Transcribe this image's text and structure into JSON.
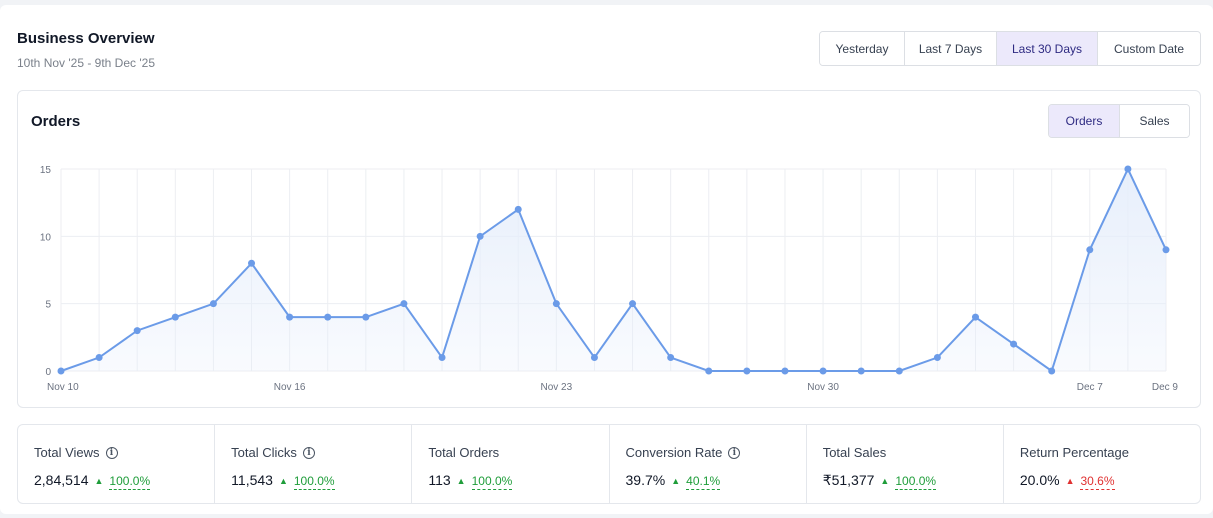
{
  "header": {
    "title": "Business Overview",
    "date_range": "10th Nov '25 - 9th Dec '25"
  },
  "range_buttons": [
    {
      "label": "Yesterday",
      "active": false
    },
    {
      "label": "Last 7 Days",
      "active": false
    },
    {
      "label": "Last 30 Days",
      "active": true
    },
    {
      "label": "Custom Date",
      "active": false
    }
  ],
  "chart_panel": {
    "title": "Orders",
    "toggles": [
      {
        "label": "Orders",
        "active": true
      },
      {
        "label": "Sales",
        "active": false
      }
    ]
  },
  "chart_data": {
    "type": "area",
    "title": "Orders",
    "x": [
      "Nov 10",
      "Nov 11",
      "Nov 12",
      "Nov 13",
      "Nov 14",
      "Nov 15",
      "Nov 16",
      "Nov 17",
      "Nov 18",
      "Nov 19",
      "Nov 20",
      "Nov 21",
      "Nov 22",
      "Nov 23",
      "Nov 24",
      "Nov 25",
      "Nov 26",
      "Nov 27",
      "Nov 28",
      "Nov 29",
      "Nov 30",
      "Dec 1",
      "Dec 2",
      "Dec 3",
      "Dec 4",
      "Dec 5",
      "Dec 6",
      "Dec 7",
      "Dec 8",
      "Dec 9"
    ],
    "values": [
      0,
      1,
      3,
      4,
      5,
      8,
      4,
      4,
      4,
      5,
      1,
      10,
      12,
      5,
      1,
      5,
      1,
      0,
      0,
      0,
      0,
      0,
      0,
      1,
      4,
      2,
      0,
      9,
      15,
      9
    ],
    "x_tick_labels": [
      "Nov 10",
      "Nov 16",
      "Nov 23",
      "Nov 30",
      "Dec 7",
      "Dec 9"
    ],
    "y_ticks": [
      0,
      5,
      10,
      15
    ],
    "ylim": [
      0,
      15
    ],
    "grid": true,
    "line_color": "#6b9be8",
    "fill_color": "#e6eefb"
  },
  "stats": [
    {
      "label": "Total Views",
      "value": "2,84,514",
      "change": "100.0%",
      "trend": "up",
      "info": true
    },
    {
      "label": "Total Clicks",
      "value": "11,543",
      "change": "100.0%",
      "trend": "up",
      "info": true
    },
    {
      "label": "Total Orders",
      "value": "113",
      "change": "100.0%",
      "trend": "up",
      "info": false
    },
    {
      "label": "Conversion Rate",
      "value": "39.7%",
      "change": "40.1%",
      "trend": "up",
      "info": true
    },
    {
      "label": "Total Sales",
      "value": "₹51,377",
      "change": "100.0%",
      "trend": "up",
      "info": false
    },
    {
      "label": "Return Percentage",
      "value": "20.0%",
      "change": "30.6%",
      "trend": "up-bad",
      "info": false
    }
  ],
  "colors": {
    "accent_bg": "#ece9fb",
    "accent_text": "#2e2a82",
    "positive": "#1f9d3a",
    "negative": "#e03131"
  },
  "icons": {
    "info": "info-icon",
    "trend_up": "triangle-up-icon"
  }
}
